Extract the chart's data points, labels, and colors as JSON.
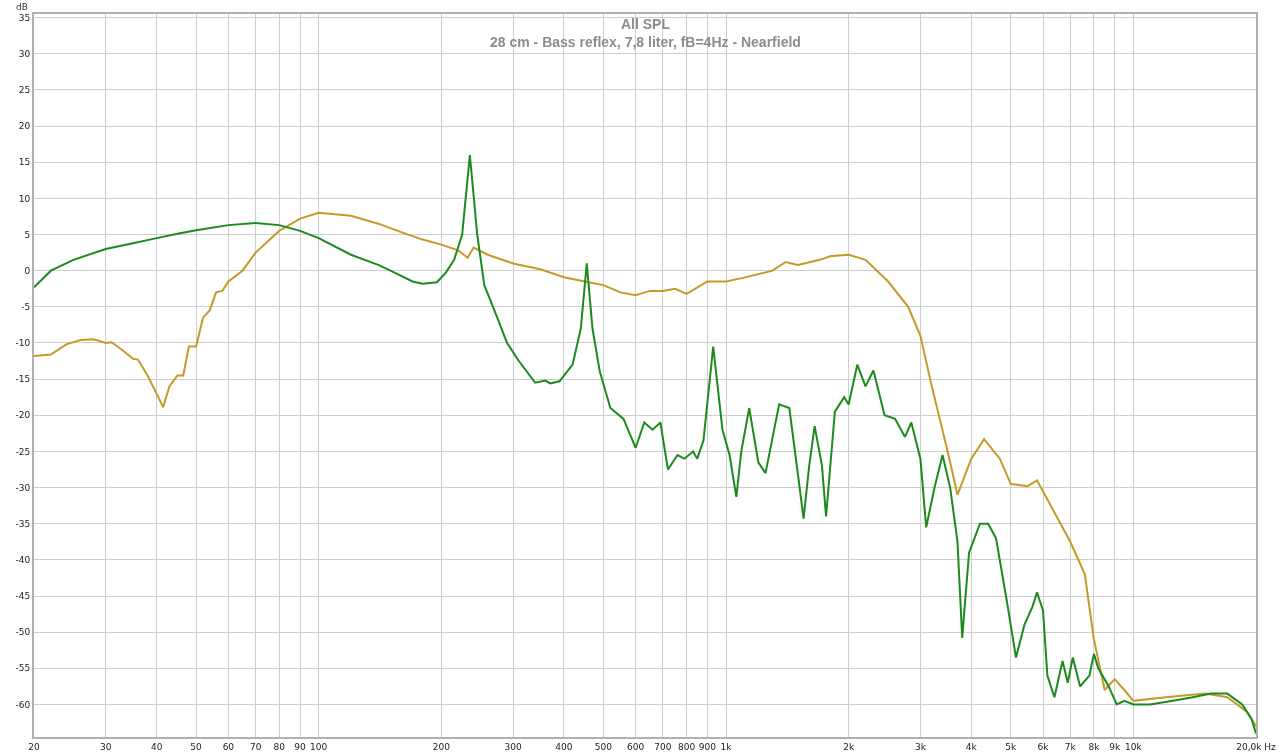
{
  "chart_data": {
    "type": "line",
    "title": "All SPL",
    "subtitle": "28 cm - Bass reflex, 7,8 liter, fB=4Hz - Nearfield",
    "ylabel": "dB",
    "log": "x",
    "grid": true,
    "line_style": "solid",
    "marker": "none",
    "xlim": [
      20,
      20000
    ],
    "ylim": [
      -64.5,
      35.5
    ],
    "xticks": [
      20,
      30,
      40,
      50,
      60,
      70,
      80,
      90,
      100,
      200,
      300,
      400,
      500,
      600,
      700,
      800,
      900,
      {
        "value": 1000,
        "label": "1k"
      },
      {
        "value": 2000,
        "label": "2k"
      },
      {
        "value": 3000,
        "label": "3k"
      },
      {
        "value": 4000,
        "label": "4k"
      },
      {
        "value": 5000,
        "label": "5k"
      },
      {
        "value": 6000,
        "label": "6k"
      },
      {
        "value": 7000,
        "label": "7k"
      },
      {
        "value": 8000,
        "label": "8k"
      },
      {
        "value": 9000,
        "label": "9k"
      },
      {
        "value": 10000,
        "label": "10k"
      },
      {
        "value": 20000,
        "label": "20,0k Hz"
      }
    ],
    "yticks": [
      35,
      30,
      25,
      20,
      15,
      10,
      5,
      0,
      -5,
      -10,
      -15,
      -20,
      -25,
      -30,
      -35,
      -40,
      -45,
      -50,
      -55,
      -60
    ],
    "series": [
      {
        "color": "#c49a2a",
        "x": [
          20,
          22,
          24,
          26,
          28,
          30,
          31,
          33,
          35,
          36,
          38,
          40,
          41.5,
          43,
          45,
          46.5,
          48,
          50,
          52,
          54,
          56,
          58,
          60,
          65,
          70,
          80,
          90,
          100,
          120,
          140,
          160,
          180,
          200,
          220,
          232,
          240,
          260,
          300,
          350,
          400,
          450,
          500,
          550,
          600,
          650,
          700,
          750,
          800,
          900,
          1000,
          1100,
          1300,
          1400,
          1500,
          1700,
          1800,
          2000,
          2200,
          2500,
          2800,
          3000,
          3200,
          3500,
          3700,
          4000,
          4300,
          4700,
          5000,
          5500,
          5800,
          6200,
          7000,
          7600,
          8000,
          8500,
          9000,
          9500,
          10000,
          12000,
          15000,
          17000,
          19000,
          20000
        ],
        "values": [
          -11.8,
          -11.6,
          -10.2,
          -9.6,
          -9.5,
          -10,
          -9.9,
          -11,
          -12.2,
          -12.3,
          -14.5,
          -17,
          -18.9,
          -16,
          -14.5,
          -14.5,
          -10.5,
          -10.5,
          -6.5,
          -5.5,
          -3,
          -2.8,
          -1.5,
          0,
          2.5,
          5.5,
          7.2,
          8,
          7.6,
          6.5,
          5.3,
          4.3,
          3.6,
          2.8,
          1.8,
          3.2,
          2.2,
          1,
          0.2,
          -0.9,
          -1.5,
          -2,
          -3,
          -3.4,
          -2.8,
          -2.8,
          -2.5,
          -3.2,
          -1.5,
          -1.5,
          -1,
          0,
          1.2,
          0.8,
          1.5,
          2,
          2.2,
          1.5,
          -1.5,
          -5,
          -9,
          -16,
          -25,
          -31,
          -26,
          -23.3,
          -26,
          -29.5,
          -29.8,
          -29,
          -32,
          -37.5,
          -42,
          -51,
          -58,
          -56.5,
          -58,
          -59.5,
          -59,
          -58.5,
          -59,
          -61,
          -63
        ]
      },
      {
        "color": "#1e8a1e",
        "x": [
          20,
          22,
          25,
          30,
          35,
          40,
          45,
          50,
          60,
          70,
          80,
          90,
          100,
          120,
          140,
          150,
          170,
          180,
          195,
          205,
          215,
          225,
          235,
          245,
          255,
          270,
          290,
          310,
          340,
          360,
          370,
          390,
          420,
          440,
          455,
          470,
          490,
          520,
          560,
          600,
          630,
          660,
          690,
          720,
          760,
          790,
          830,
          850,
          880,
          930,
          980,
          1020,
          1060,
          1090,
          1140,
          1200,
          1250,
          1350,
          1430,
          1500,
          1550,
          1600,
          1650,
          1720,
          1760,
          1850,
          1950,
          2000,
          2100,
          2200,
          2300,
          2450,
          2600,
          2750,
          2850,
          3000,
          3100,
          3250,
          3400,
          3550,
          3700,
          3800,
          3950,
          4200,
          4400,
          4600,
          4900,
          5150,
          5400,
          5650,
          5800,
          6000,
          6150,
          6400,
          6700,
          6900,
          7100,
          7400,
          7800,
          8000,
          8200,
          8700,
          9100,
          9500,
          10000,
          11000,
          12500,
          14000,
          15500,
          17000,
          18500,
          19500,
          20000
        ],
        "values": [
          -2.3,
          0,
          1.5,
          3,
          3.8,
          4.5,
          5.1,
          5.6,
          6.3,
          6.6,
          6.3,
          5.5,
          4.5,
          2.2,
          0.8,
          0,
          -1.5,
          -1.8,
          -1.6,
          -0.3,
          1.5,
          5,
          16,
          5,
          -2,
          -5.5,
          -10,
          -12.5,
          -15.5,
          -15.2,
          -15.6,
          -15.3,
          -13,
          -8,
          1,
          -8,
          -14,
          -19,
          -20.5,
          -24.5,
          -21,
          -22,
          -21,
          -27.5,
          -25.5,
          -26,
          -25,
          -26,
          -23.5,
          -10.5,
          -22,
          -25.5,
          -31.3,
          -25,
          -19,
          -26.5,
          -28,
          -18.5,
          -19,
          -28,
          -34.3,
          -27,
          -21.5,
          -27,
          -34,
          -19.5,
          -17.5,
          -18.5,
          -13,
          -16,
          -13.8,
          -20,
          -20.5,
          -23,
          -21,
          -26,
          -35.5,
          -30,
          -25.5,
          -30,
          -37.5,
          -50.8,
          -39,
          -35,
          -35,
          -37,
          -46,
          -53.5,
          -49,
          -46.5,
          -44.5,
          -47,
          -56,
          -59,
          -54,
          -57,
          -53.5,
          -57.5,
          -56,
          -53,
          -55,
          -57.5,
          -60,
          -59.5,
          -60,
          -60,
          -59.5,
          -59,
          -58.5,
          -58.5,
          -60,
          -62,
          -64
        ]
      }
    ]
  }
}
